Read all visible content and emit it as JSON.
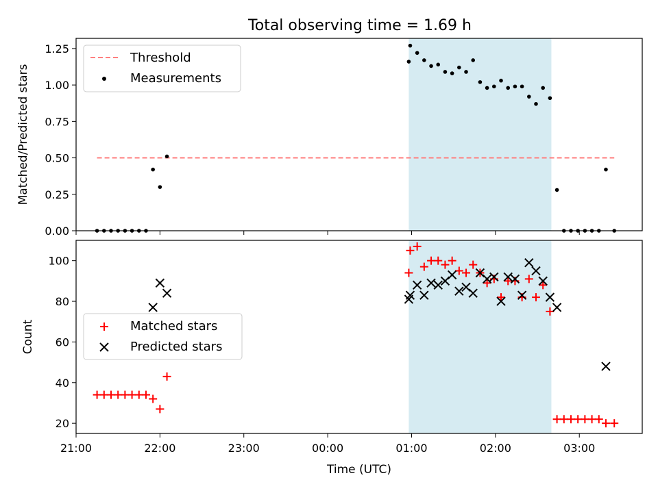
{
  "chart_data": [
    {
      "type": "scatter",
      "title": "Total observing time = 1.69 h",
      "ylabel": "Matched/Predicted stars",
      "xlabel": "",
      "xlim": [
        "21:00",
        "03:45"
      ],
      "ylim": [
        0,
        1.32
      ],
      "x_ticks": [
        "21:00",
        "22:00",
        "23:00",
        "00:00",
        "01:00",
        "02:00",
        "03:00"
      ],
      "y_ticks": [
        0,
        0.25,
        0.5,
        0.75,
        1.0,
        1.25
      ],
      "y_tick_labels": [
        "0.00",
        "0.25",
        "0.50",
        "0.75",
        "1.00",
        "1.25"
      ],
      "highlight_span": {
        "start": "00:58",
        "end": "02:40",
        "color": "#add8e6"
      },
      "threshold": {
        "name": "Threshold",
        "value": 0.5,
        "x_range": [
          "21:15",
          "03:25"
        ],
        "color": "#ff7f7f",
        "style": "dashed"
      },
      "legend": {
        "location": "upper-left",
        "entries": [
          "Threshold",
          "Measurements"
        ]
      },
      "series": [
        {
          "name": "Measurements",
          "marker": "dot",
          "color": "#000000",
          "x": [
            "21:15",
            "21:20",
            "21:25",
            "21:30",
            "21:35",
            "21:40",
            "21:45",
            "21:50",
            "21:55",
            "22:00",
            "22:05",
            "00:58",
            "00:59",
            "01:04",
            "01:09",
            "01:14",
            "01:19",
            "01:24",
            "01:29",
            "01:34",
            "01:39",
            "01:44",
            "01:49",
            "01:54",
            "01:59",
            "02:04",
            "02:09",
            "02:14",
            "02:19",
            "02:24",
            "02:29",
            "02:34",
            "02:39",
            "02:44",
            "02:49",
            "02:54",
            "02:59",
            "03:04",
            "03:09",
            "03:14",
            "03:19",
            "03:25"
          ],
          "y": [
            0,
            0,
            0,
            0,
            0,
            0,
            0,
            0,
            0.42,
            0.3,
            0.51,
            1.16,
            1.27,
            1.22,
            1.17,
            1.13,
            1.14,
            1.09,
            1.08,
            1.12,
            1.09,
            1.17,
            1.02,
            0.98,
            0.99,
            1.03,
            0.98,
            0.99,
            0.99,
            0.92,
            0.87,
            0.98,
            0.91,
            0.28,
            0,
            0,
            0,
            0,
            0,
            0,
            0.42,
            0
          ]
        }
      ]
    },
    {
      "type": "scatter",
      "title": "",
      "ylabel": "Count",
      "xlabel": "Time (UTC)",
      "xlim": [
        "21:00",
        "03:45"
      ],
      "ylim": [
        15,
        110
      ],
      "x_ticks": [
        "21:00",
        "22:00",
        "23:00",
        "00:00",
        "01:00",
        "02:00",
        "03:00"
      ],
      "y_ticks": [
        20,
        40,
        60,
        80,
        100
      ],
      "y_tick_labels": [
        "20",
        "40",
        "60",
        "80",
        "100"
      ],
      "highlight_span": {
        "start": "00:58",
        "end": "02:40",
        "color": "#add8e6"
      },
      "legend": {
        "location": "center-left",
        "entries": [
          "Matched stars",
          "Predicted stars"
        ]
      },
      "series": [
        {
          "name": "Matched stars",
          "marker": "plus",
          "color": "#ff0000",
          "x": [
            "21:15",
            "21:20",
            "21:25",
            "21:30",
            "21:35",
            "21:40",
            "21:45",
            "21:50",
            "21:55",
            "22:00",
            "22:05",
            "00:58",
            "00:59",
            "01:04",
            "01:09",
            "01:14",
            "01:19",
            "01:24",
            "01:29",
            "01:34",
            "01:39",
            "01:44",
            "01:49",
            "01:54",
            "01:59",
            "02:04",
            "02:09",
            "02:14",
            "02:19",
            "02:24",
            "02:29",
            "02:34",
            "02:39",
            "02:44",
            "02:49",
            "02:54",
            "02:59",
            "03:04",
            "03:09",
            "03:14",
            "03:19",
            "03:25"
          ],
          "y": [
            34,
            34,
            34,
            34,
            34,
            34,
            34,
            34,
            32,
            27,
            43,
            94,
            105,
            107,
            97,
            100,
            100,
            98,
            100,
            95,
            94,
            98,
            94,
            89,
            91,
            82,
            90,
            90,
            82,
            91,
            82,
            88,
            75,
            22,
            22,
            22,
            22,
            22,
            22,
            22,
            20,
            20
          ]
        },
        {
          "name": "Predicted stars",
          "marker": "x",
          "color": "#000000",
          "x": [
            "21:55",
            "22:00",
            "22:05",
            "00:58",
            "00:59",
            "01:04",
            "01:09",
            "01:14",
            "01:19",
            "01:24",
            "01:29",
            "01:34",
            "01:39",
            "01:44",
            "01:49",
            "01:54",
            "01:59",
            "02:04",
            "02:09",
            "02:14",
            "02:19",
            "02:24",
            "02:29",
            "02:34",
            "02:39",
            "02:44",
            "03:19"
          ],
          "y": [
            77,
            89,
            84,
            81,
            83,
            88,
            83,
            89,
            88,
            90,
            93,
            85,
            87,
            84,
            94,
            91,
            92,
            80,
            92,
            91,
            83,
            99,
            95,
            90,
            82,
            77,
            48
          ]
        }
      ]
    }
  ]
}
